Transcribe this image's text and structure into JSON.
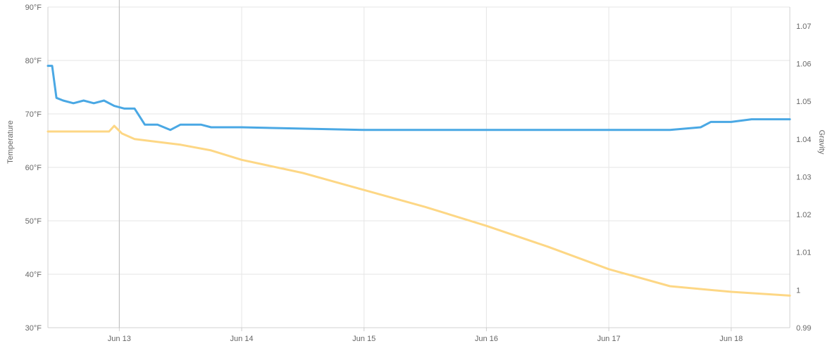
{
  "chart_data": {
    "type": "line",
    "x_axis": {
      "type": "date",
      "min": "2023-06-12T10:00",
      "max": "2023-06-18T11:30",
      "ticks": [
        {
          "label": "Jun 13",
          "value": "2023-06-13T00:00"
        },
        {
          "label": "Jun 14",
          "value": "2023-06-14T00:00"
        },
        {
          "label": "Jun 15",
          "value": "2023-06-15T00:00"
        },
        {
          "label": "Jun 16",
          "value": "2023-06-16T00:00"
        },
        {
          "label": "Jun 17",
          "value": "2023-06-17T00:00"
        },
        {
          "label": "Jun 18",
          "value": "2023-06-18T00:00"
        }
      ]
    },
    "y_axis_left": {
      "title": "Temperature",
      "min": 30,
      "max": 90,
      "ticks": [
        {
          "label": "30°F",
          "value": 30
        },
        {
          "label": "40°F",
          "value": 40
        },
        {
          "label": "50°F",
          "value": 50
        },
        {
          "label": "60°F",
          "value": 60
        },
        {
          "label": "70°F",
          "value": 70
        },
        {
          "label": "80°F",
          "value": 80
        },
        {
          "label": "90°F",
          "value": 90
        }
      ]
    },
    "y_axis_right": {
      "title": "Gravity",
      "min": 0.99,
      "max": 1.075,
      "ticks": [
        {
          "label": "0.99",
          "value": 0.99
        },
        {
          "label": "1",
          "value": 1.0
        },
        {
          "label": "1.01",
          "value": 1.01
        },
        {
          "label": "1.02",
          "value": 1.02
        },
        {
          "label": "1.03",
          "value": 1.03
        },
        {
          "label": "1.04",
          "value": 1.04
        },
        {
          "label": "1.05",
          "value": 1.05
        },
        {
          "label": "1.06",
          "value": 1.06
        },
        {
          "label": "1.07",
          "value": 1.07
        }
      ]
    },
    "grid": true,
    "crosshair_x": "2023-06-13T00:00",
    "series": [
      {
        "axis": "left",
        "color": "#4aa8e4",
        "points": [
          [
            "2023-06-12T10:00",
            79
          ],
          [
            "2023-06-12T10:50",
            79
          ],
          [
            "2023-06-12T11:40",
            73
          ],
          [
            "2023-06-12T13:00",
            72.5
          ],
          [
            "2023-06-12T15:00",
            72
          ],
          [
            "2023-06-12T17:00",
            72.5
          ],
          [
            "2023-06-12T19:00",
            72
          ],
          [
            "2023-06-12T21:00",
            72.5
          ],
          [
            "2023-06-12T23:00",
            71.5
          ],
          [
            "2023-06-13T01:00",
            71
          ],
          [
            "2023-06-13T03:00",
            71
          ],
          [
            "2023-06-13T04:00",
            69.5
          ],
          [
            "2023-06-13T05:00",
            68
          ],
          [
            "2023-06-13T07:30",
            68
          ],
          [
            "2023-06-13T10:00",
            67
          ],
          [
            "2023-06-13T12:00",
            68
          ],
          [
            "2023-06-13T14:00",
            68
          ],
          [
            "2023-06-13T16:00",
            68
          ],
          [
            "2023-06-13T18:00",
            67.5
          ],
          [
            "2023-06-13T20:00",
            67.5
          ],
          [
            "2023-06-14T00:00",
            67.5
          ],
          [
            "2023-06-15T00:00",
            67
          ],
          [
            "2023-06-16T00:00",
            67
          ],
          [
            "2023-06-16T12:00",
            67
          ],
          [
            "2023-06-17T00:00",
            67
          ],
          [
            "2023-06-17T12:00",
            67
          ],
          [
            "2023-06-17T18:00",
            67.5
          ],
          [
            "2023-06-17T20:00",
            68.5
          ],
          [
            "2023-06-18T00:00",
            68.5
          ],
          [
            "2023-06-18T04:00",
            69
          ],
          [
            "2023-06-18T11:30",
            69
          ]
        ]
      },
      {
        "axis": "right",
        "color": "#fdd785",
        "points": [
          [
            "2023-06-12T10:00",
            1.042
          ],
          [
            "2023-06-12T22:00",
            1.042
          ],
          [
            "2023-06-12T23:00",
            1.0435
          ],
          [
            "2023-06-13T00:30",
            1.0415
          ],
          [
            "2023-06-13T03:00",
            1.04
          ],
          [
            "2023-06-13T09:00",
            1.039
          ],
          [
            "2023-06-13T12:00",
            1.0385
          ],
          [
            "2023-06-13T18:00",
            1.037
          ],
          [
            "2023-06-14T00:00",
            1.0345
          ],
          [
            "2023-06-14T12:00",
            1.031
          ],
          [
            "2023-06-15T00:00",
            1.0265
          ],
          [
            "2023-06-15T12:00",
            1.022
          ],
          [
            "2023-06-16T00:00",
            1.017
          ],
          [
            "2023-06-16T12:00",
            1.0115
          ],
          [
            "2023-06-17T00:00",
            1.0055
          ],
          [
            "2023-06-17T12:00",
            1.001
          ],
          [
            "2023-06-18T00:00",
            0.9995
          ],
          [
            "2023-06-18T11:30",
            0.9985
          ]
        ]
      }
    ]
  }
}
